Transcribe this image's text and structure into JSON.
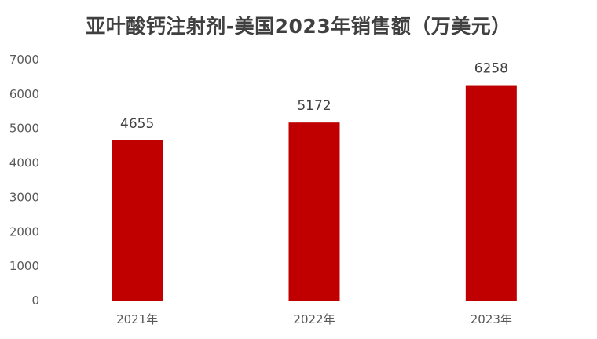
{
  "chart_data": {
    "type": "bar",
    "title": "亚叶酸钙注射剂-美国2023年销售额（万美元）",
    "categories": [
      "2021年",
      "2022年",
      "2023年"
    ],
    "values": [
      4655,
      5172,
      6258
    ],
    "data_labels": [
      "4655",
      "5172",
      "6258"
    ],
    "xlabel": "",
    "ylabel": "",
    "ylim": [
      0,
      7000
    ],
    "yticks": [
      "0",
      "1000",
      "2000",
      "3000",
      "4000",
      "5000",
      "6000",
      "7000"
    ],
    "grid": false,
    "legend": "none",
    "bar_color": "#C00000"
  }
}
